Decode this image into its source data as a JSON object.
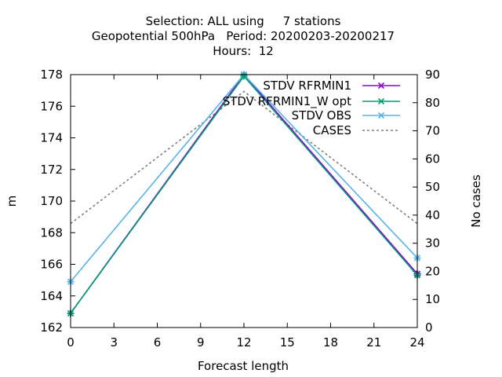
{
  "chart_data": {
    "type": "line",
    "title_lines": [
      "Selection: ALL using     7 stations",
      "Geopotential 500hPa   Period: 20200203-20200217",
      "Hours:  12"
    ],
    "xlabel": "Forecast length",
    "ylabel": "m",
    "y2label": "No cases",
    "x": [
      0,
      12,
      24
    ],
    "xticks": [
      0,
      3,
      6,
      9,
      12,
      15,
      18,
      21,
      24
    ],
    "xlim": [
      0,
      24
    ],
    "ylim": [
      162,
      178
    ],
    "yticks": [
      162,
      164,
      166,
      168,
      170,
      172,
      174,
      176,
      178
    ],
    "y2lim": [
      0,
      90
    ],
    "y2ticks": [
      0,
      10,
      20,
      30,
      40,
      50,
      60,
      70,
      80,
      90
    ],
    "legend_position": "top-right",
    "series": [
      {
        "name": "STDV RFRMIN1",
        "values": [
          162.9,
          178.0,
          165.4
        ],
        "color": "#9400d3",
        "marker": "x",
        "dash": false,
        "axis": "y1"
      },
      {
        "name": "STDV RFRMIN1_W opt",
        "values": [
          162.9,
          177.9,
          165.3
        ],
        "color": "#009e73",
        "marker": "x",
        "dash": false,
        "axis": "y1"
      },
      {
        "name": "STDV OBS",
        "values": [
          164.9,
          178.0,
          166.4
        ],
        "color": "#56b4e9",
        "marker": "x",
        "dash": false,
        "axis": "y1"
      },
      {
        "name": "CASES",
        "values": [
          37,
          84,
          37
        ],
        "color": "#808080",
        "marker": "none",
        "dash": true,
        "axis": "y2"
      }
    ]
  }
}
